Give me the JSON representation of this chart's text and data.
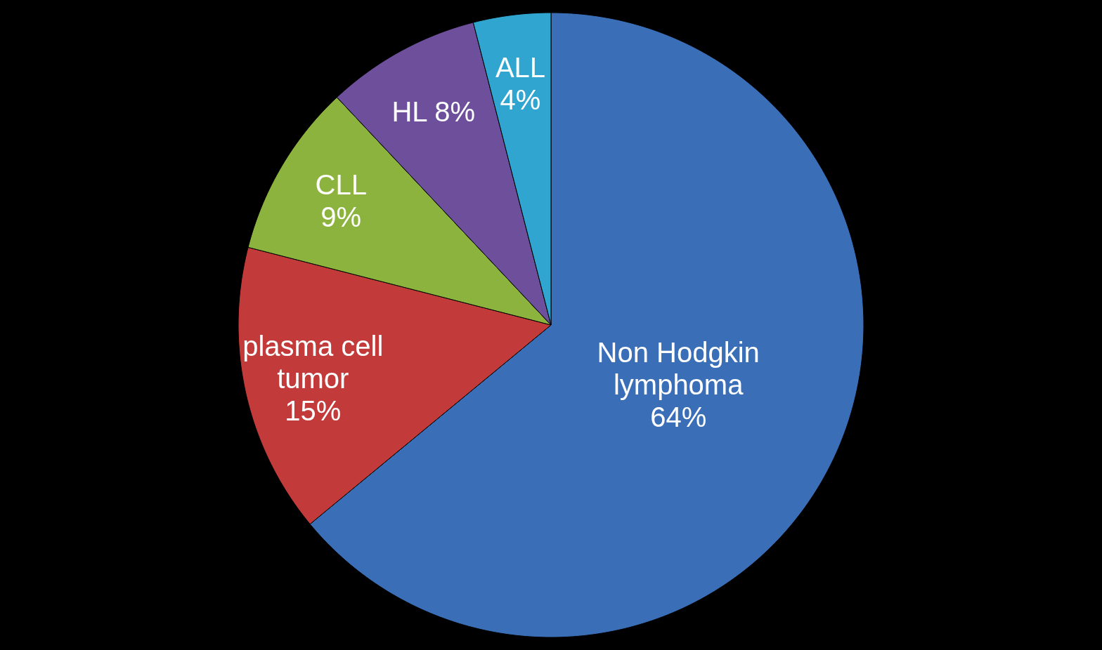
{
  "chart_data": {
    "type": "pie",
    "categories": [
      "Non Hodgkin lymphoma",
      "plasma cell tumor",
      "CLL",
      "HL",
      "ALL"
    ],
    "values": [
      64,
      15,
      9,
      8,
      4
    ],
    "value_labels": [
      "64%",
      "15%",
      "9%",
      "8%",
      "4%"
    ],
    "colors": [
      "#3a6fb8",
      "#c23a3a",
      "#8cb33d",
      "#6e4f9c",
      "#2fa5cf"
    ]
  }
}
